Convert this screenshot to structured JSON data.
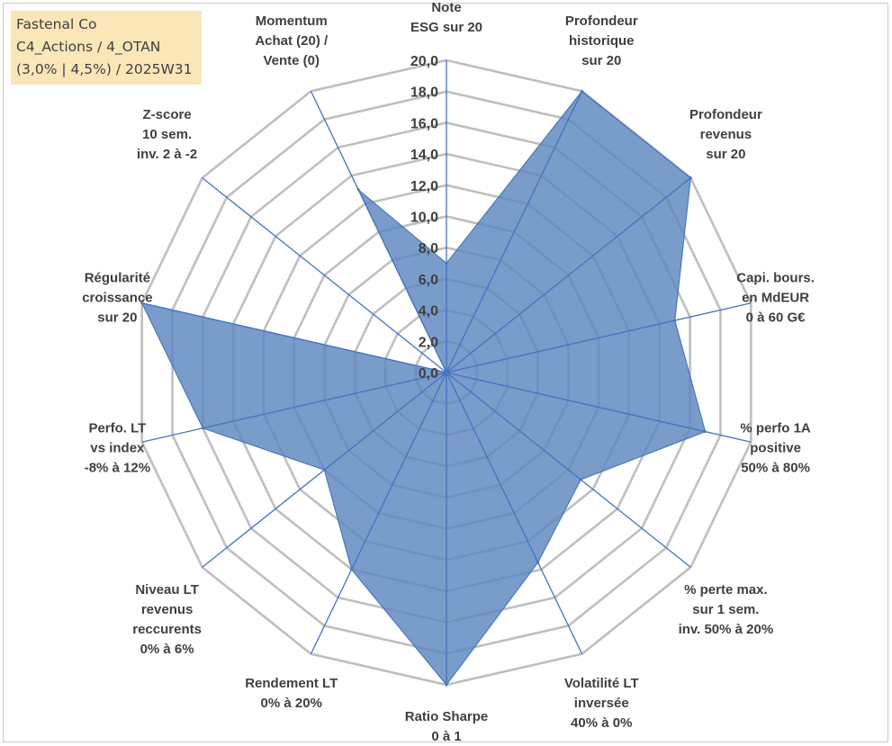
{
  "info_box": {
    "line1": "Fastenal Co",
    "line2": "C4_Actions / 4_OTAN",
    "line3": "(3,0% | 4,5%) / 2025W31"
  },
  "colors": {
    "fill": "#5b86bf",
    "stroke": "#4a78b8",
    "spoke": "#4472c4",
    "grid": "#bfbfbf",
    "text": "#404040",
    "info_bg": "#fbe6b8"
  },
  "chart_data": {
    "type": "radar",
    "rmin": 0,
    "rmax": 20,
    "ticks": [
      "0,0",
      "2,0",
      "4,0",
      "6,0",
      "8,0",
      "10,0",
      "12,0",
      "14,0",
      "16,0",
      "18,0",
      "20,0"
    ],
    "categories": [
      [
        "Note",
        "ESG sur 20"
      ],
      [
        "Profondeur",
        "historique",
        "sur 20"
      ],
      [
        "Profondeur",
        "revenus",
        "sur 20"
      ],
      [
        "Capi. bours.",
        "en MdEUR",
        "0 à 60 G€"
      ],
      [
        "% perfo 1A",
        "positive",
        "50% à 80%"
      ],
      [
        "% perte max.",
        "sur 1 sem.",
        "inv. 50% à 20%"
      ],
      [
        "Volatilité LT",
        "inversée",
        "40% à 0%"
      ],
      [
        "Ratio Sharpe",
        "0 à 1"
      ],
      [
        "Rendement LT",
        "0% à 20%"
      ],
      [
        "Niveau LT",
        "revenus",
        "reccurents",
        "0% à 6%"
      ],
      [
        "Perfo. LT",
        "vs index",
        "-8% à 12%"
      ],
      [
        "Régularité",
        "croissance",
        "sur 20"
      ],
      [
        "Z-score",
        "10 sem.",
        "inv. 2 à -2"
      ],
      [
        "Momentum",
        "Achat (20) /",
        "Vente (0)"
      ]
    ],
    "series": [
      {
        "values": [
          7,
          20,
          20,
          15,
          17,
          11,
          13.5,
          20,
          14,
          10,
          16,
          20,
          0,
          13
        ]
      }
    ]
  }
}
